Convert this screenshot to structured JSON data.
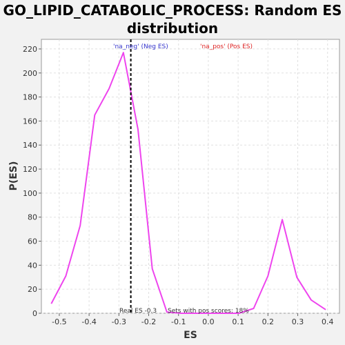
{
  "title_line1": "GO_LIPID_CATABOLIC_PROCESS: Random ES",
  "title_line2": "distribution",
  "chart_data": {
    "type": "line",
    "xlabel": "ES",
    "ylabel": "P(ES)",
    "xlim": [
      -0.56,
      0.44
    ],
    "ylim": [
      0,
      228
    ],
    "x_ticks": [
      -0.5,
      -0.4,
      -0.3,
      -0.2,
      -0.1,
      0.0,
      0.1,
      0.2,
      0.3,
      0.4
    ],
    "x_tick_labels": [
      "-0.5",
      "-0.4",
      "-0.3",
      "-0.2",
      "-0.1",
      "0.0",
      "0.1",
      "0.2",
      "0.3",
      "0.4"
    ],
    "y_ticks": [
      0,
      20,
      40,
      60,
      80,
      100,
      120,
      140,
      160,
      180,
      200,
      220
    ],
    "grid": true,
    "series": [
      {
        "color": "#ee44ee",
        "x": [
          -0.527,
          -0.478,
          -0.43,
          -0.381,
          -0.333,
          -0.285,
          -0.236,
          -0.188,
          -0.139,
          -0.091,
          -0.042,
          0.006,
          0.055,
          0.103,
          0.152,
          0.2,
          0.248,
          0.297,
          0.345,
          0.394
        ],
        "y": [
          8,
          31,
          73,
          165,
          187,
          217,
          153,
          37,
          1,
          0,
          0,
          0,
          0,
          0,
          4,
          31,
          78,
          30,
          11,
          3
        ]
      }
    ],
    "real_es": -0.26,
    "real_es_color": "#000000",
    "annotations": {
      "neg_label": "'na_neg' (Neg ES)",
      "neg_color": "#3333cc",
      "pos_label": "'na_pos' (Pos ES)",
      "pos_color": "#dd2222",
      "real_es_text": "Real ES -0.3",
      "sets_text": "Sets with pos scores: 18%"
    }
  }
}
